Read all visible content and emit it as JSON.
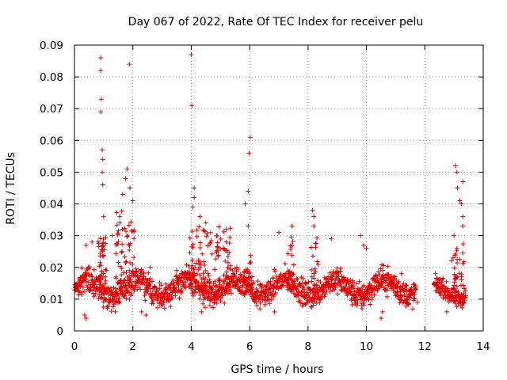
{
  "chart_data": {
    "type": "scatter",
    "title": "Day 067 of 2022, Rate Of TEC Index for receiver pelu",
    "xlabel": "GPS time / hours",
    "ylabel": "ROTI / TECUs",
    "xlim": [
      0,
      14
    ],
    "ylim": [
      0,
      0.09
    ],
    "x_ticks": [
      "0",
      "2",
      "4",
      "6",
      "8",
      "10",
      "12",
      "14"
    ],
    "y_ticks": [
      "0",
      "0.01",
      "0.02",
      "0.03",
      "0.04",
      "0.05",
      "0.06",
      "0.07",
      "0.08",
      "0.09"
    ],
    "grid": true,
    "marker": "+",
    "marker_color": "#e00000",
    "series": [
      {
        "name": "ROTI",
        "segments": [
          {
            "t_start": 0.0,
            "t_end": 11.7,
            "base": 0.013,
            "spread": 0.012
          },
          {
            "t_start": 12.3,
            "t_end": 13.4,
            "base": 0.012,
            "spread": 0.008
          }
        ],
        "peaks": [
          {
            "x": 0.9,
            "y": 0.086
          },
          {
            "x": 0.9,
            "y": 0.082
          },
          {
            "x": 0.92,
            "y": 0.073
          },
          {
            "x": 0.9,
            "y": 0.069
          },
          {
            "x": 0.95,
            "y": 0.057
          },
          {
            "x": 0.97,
            "y": 0.054
          },
          {
            "x": 0.95,
            "y": 0.05
          },
          {
            "x": 0.97,
            "y": 0.046
          },
          {
            "x": 1.0,
            "y": 0.036
          },
          {
            "x": 1.3,
            "y": 0.03
          },
          {
            "x": 1.55,
            "y": 0.036
          },
          {
            "x": 1.65,
            "y": 0.043
          },
          {
            "x": 1.75,
            "y": 0.048
          },
          {
            "x": 1.8,
            "y": 0.051
          },
          {
            "x": 1.88,
            "y": 0.084
          },
          {
            "x": 1.9,
            "y": 0.045
          },
          {
            "x": 2.0,
            "y": 0.041
          },
          {
            "x": 4.0,
            "y": 0.087
          },
          {
            "x": 4.02,
            "y": 0.071
          },
          {
            "x": 4.1,
            "y": 0.045
          },
          {
            "x": 4.1,
            "y": 0.042
          },
          {
            "x": 4.05,
            "y": 0.039
          },
          {
            "x": 4.3,
            "y": 0.036
          },
          {
            "x": 4.5,
            "y": 0.034
          },
          {
            "x": 5.2,
            "y": 0.032
          },
          {
            "x": 5.85,
            "y": 0.04
          },
          {
            "x": 6.02,
            "y": 0.061
          },
          {
            "x": 5.98,
            "y": 0.056
          },
          {
            "x": 5.95,
            "y": 0.044
          },
          {
            "x": 5.95,
            "y": 0.033
          },
          {
            "x": 7.0,
            "y": 0.031
          },
          {
            "x": 7.45,
            "y": 0.033
          },
          {
            "x": 8.15,
            "y": 0.038
          },
          {
            "x": 8.2,
            "y": 0.036
          },
          {
            "x": 8.2,
            "y": 0.033
          },
          {
            "x": 8.8,
            "y": 0.029
          },
          {
            "x": 9.8,
            "y": 0.03
          },
          {
            "x": 9.9,
            "y": 0.027
          },
          {
            "x": 10.0,
            "y": 0.026
          },
          {
            "x": 13.05,
            "y": 0.052
          },
          {
            "x": 13.1,
            "y": 0.05
          },
          {
            "x": 13.12,
            "y": 0.045
          },
          {
            "x": 13.2,
            "y": 0.041
          },
          {
            "x": 13.3,
            "y": 0.047
          },
          {
            "x": 13.25,
            "y": 0.04
          },
          {
            "x": 13.3,
            "y": 0.036
          },
          {
            "x": 13.3,
            "y": 0.033
          },
          {
            "x": 13.0,
            "y": 0.03
          },
          {
            "x": 13.1,
            "y": 0.026
          },
          {
            "x": 0.4,
            "y": 0.027
          },
          {
            "x": 0.6,
            "y": 0.028
          },
          {
            "x": 2.6,
            "y": 0.02
          },
          {
            "x": 3.5,
            "y": 0.019
          },
          {
            "x": 11.2,
            "y": 0.018
          }
        ],
        "bursts": [
          {
            "x_start": 0.8,
            "x_end": 1.1,
            "count": 40,
            "y_min": 0.012,
            "y_max": 0.03
          },
          {
            "x_start": 1.4,
            "x_end": 2.05,
            "count": 50,
            "y_min": 0.014,
            "y_max": 0.038
          },
          {
            "x_start": 3.95,
            "x_end": 5.4,
            "count": 110,
            "y_min": 0.012,
            "y_max": 0.033
          },
          {
            "x_start": 5.8,
            "x_end": 6.1,
            "count": 25,
            "y_min": 0.012,
            "y_max": 0.025
          },
          {
            "x_start": 7.3,
            "x_end": 7.6,
            "count": 20,
            "y_min": 0.012,
            "y_max": 0.03
          },
          {
            "x_start": 8.1,
            "x_end": 8.35,
            "count": 20,
            "y_min": 0.012,
            "y_max": 0.03
          },
          {
            "x_start": 12.9,
            "x_end": 13.4,
            "count": 30,
            "y_min": 0.012,
            "y_max": 0.028
          }
        ],
        "dips": [
          {
            "x": 1.4,
            "y": 0.006
          },
          {
            "x": 2.3,
            "y": 0.006
          },
          {
            "x": 2.45,
            "y": 0.005
          },
          {
            "x": 0.4,
            "y": 0.004
          },
          {
            "x": 0.35,
            "y": 0.005
          },
          {
            "x": 6.85,
            "y": 0.006
          },
          {
            "x": 10.5,
            "y": 0.004
          },
          {
            "x": 10.55,
            "y": 0.006
          },
          {
            "x": 12.75,
            "y": 0.006
          },
          {
            "x": 11.75,
            "y": 0.009
          },
          {
            "x": 9.85,
            "y": 0.007
          },
          {
            "x": 4.35,
            "y": 0.006
          }
        ]
      }
    ]
  }
}
